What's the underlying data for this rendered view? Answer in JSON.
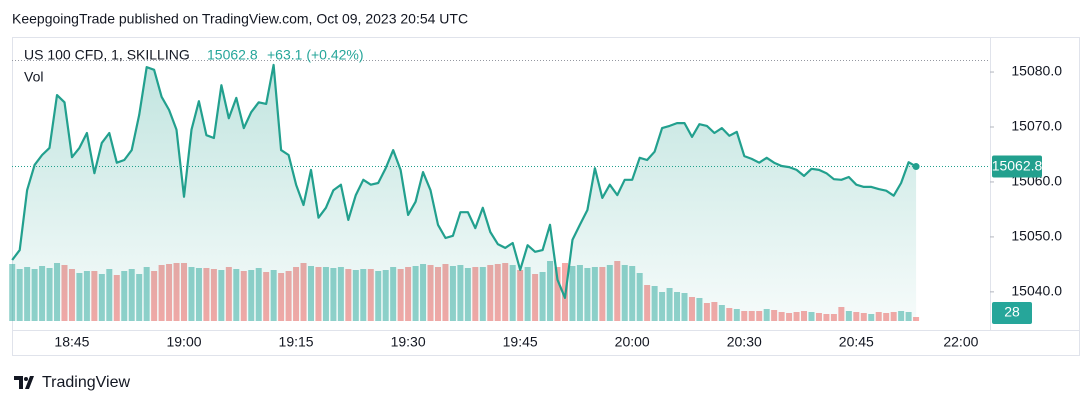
{
  "attribution": "KeepgoingTrade published on TradingView.com, Oct 09, 2023 20:54 UTC",
  "brand": "TradingView",
  "chart_data": {
    "type": "line",
    "title": "US 100 CFD, 1, SKILLING",
    "change": "+63.1 (+0.42%)",
    "categories": [
      null,
      null,
      null,
      null,
      null,
      null,
      null,
      null,
      "18:45",
      null,
      null,
      null,
      null,
      null,
      null,
      null,
      null,
      null,
      null,
      null,
      null,
      null,
      null,
      "19:00",
      null,
      null,
      null,
      null,
      null,
      null,
      null,
      null,
      null,
      null,
      null,
      null,
      null,
      null,
      "19:15",
      null,
      null,
      null,
      null,
      null,
      null,
      null,
      null,
      null,
      null,
      null,
      null,
      null,
      null,
      "19:30",
      null,
      null,
      null,
      null,
      null,
      null,
      null,
      null,
      null,
      null,
      null,
      null,
      null,
      null,
      "19:45",
      null,
      null,
      null,
      null,
      null,
      null,
      null,
      null,
      null,
      null,
      null,
      null,
      null,
      null,
      "20:00",
      null,
      null,
      null,
      null,
      null,
      null,
      null,
      null,
      null,
      null,
      null,
      null,
      null,
      null,
      "20:30",
      null,
      null,
      null,
      null,
      null,
      null,
      null,
      null,
      null,
      null,
      null,
      null,
      null,
      null,
      "20:45",
      null,
      null,
      null,
      null,
      null,
      null,
      null,
      null,
      null,
      null,
      null,
      null,
      null,
      "22:00"
    ],
    "series": [
      {
        "name": "US 100 CFD",
        "color": "#22a08e",
        "fill": "#22a08e",
        "values": [
          15045.8,
          15047.6,
          15058.5,
          15063.1,
          15064.9,
          15066.2,
          15075.8,
          15074.5,
          15064.5,
          15066.2,
          15068.9,
          15061.6,
          15067.1,
          15068.9,
          15063.5,
          15064.0,
          15065.8,
          15072.2,
          15080.9,
          15080.4,
          15075.5,
          15073.1,
          15069.5,
          15057.3,
          15069.5,
          15074.7,
          15068.5,
          15068.0,
          15077.6,
          15071.6,
          15075.3,
          15069.8,
          15072.7,
          15074.5,
          15074.2,
          15081.3,
          15065.8,
          15064.9,
          15059.5,
          15055.8,
          15062.2,
          15053.5,
          15055.3,
          15058.5,
          15059.5,
          15053.1,
          15057.6,
          15060.4,
          15059.5,
          15059.8,
          15062.5,
          15065.8,
          15062.2,
          15054.0,
          15056.4,
          15061.8,
          15058.5,
          15052.2,
          15049.8,
          15050.2,
          15054.5,
          15054.5,
          15051.6,
          15055.3,
          15050.9,
          15048.7,
          15048.0,
          15048.9,
          15044.0,
          15048.5,
          15047.3,
          15047.6,
          15052.2,
          15042.2,
          15038.9,
          15049.5,
          15052.2,
          15054.9,
          15062.5,
          15057.1,
          15059.5,
          15057.6,
          15060.4,
          15060.4,
          15064.4,
          15064.0,
          15065.5,
          15069.8,
          15070.2,
          15070.7,
          15070.7,
          15068.2,
          15070.5,
          15070.2,
          15068.9,
          15069.8,
          15068.4,
          15069.1,
          15064.7,
          15064.2,
          15063.5,
          15064.4,
          15063.5,
          15062.9,
          15062.7,
          15062.2,
          15061.1,
          15062.4,
          15062.2,
          15061.6,
          15060.5,
          15060.4,
          15060.9,
          15059.5,
          15059.1,
          15059.1,
          15058.7,
          15058.4,
          15057.5,
          15059.8,
          15063.6,
          15062.8,
          null,
          null,
          null,
          null,
          null,
          null
        ]
      },
      {
        "name": "Vol",
        "axis": "y2",
        "up_color": "#26a69a",
        "down_color": "#ef5350",
        "values": [
          399,
          364,
          378,
          364,
          385,
          371,
          406,
          392,
          364,
          336,
          350,
          350,
          329,
          364,
          322,
          350,
          364,
          329,
          378,
          350,
          392,
          399,
          406,
          406,
          378,
          371,
          371,
          364,
          357,
          378,
          364,
          350,
          357,
          371,
          343,
          357,
          336,
          350,
          378,
          406,
          385,
          378,
          378,
          371,
          378,
          364,
          357,
          364,
          364,
          350,
          357,
          378,
          364,
          378,
          385,
          399,
          392,
          378,
          399,
          385,
          392,
          371,
          378,
          378,
          392,
          399,
          406,
          392,
          357,
          378,
          329,
          343,
          420,
          378,
          406,
          385,
          392,
          371,
          378,
          378,
          392,
          420,
          392,
          385,
          336,
          252,
          245,
          203,
          231,
          203,
          196,
          168,
          161,
          126,
          133,
          112,
          91,
          84,
          70,
          70,
          70,
          84,
          77,
          63,
          56,
          63,
          70,
          63,
          56,
          49,
          49,
          98,
          70,
          63,
          56,
          49,
          63,
          56,
          63,
          70,
          63,
          28,
          null,
          null,
          null,
          null,
          null,
          null
        ]
      }
    ],
    "ylim": [
      15034.7,
      15085.1
    ],
    "yticks": [
      {
        "value": 15080,
        "label": "15080.0"
      },
      {
        "value": 15070,
        "label": "15070.0"
      },
      {
        "value": 15060,
        "label": "15060.0"
      },
      {
        "value": 15050,
        "label": "15050.0"
      },
      {
        "value": 15040,
        "label": "15040.0"
      }
    ],
    "y2lim": [
      0,
      1939
    ],
    "grid": false
  }
}
